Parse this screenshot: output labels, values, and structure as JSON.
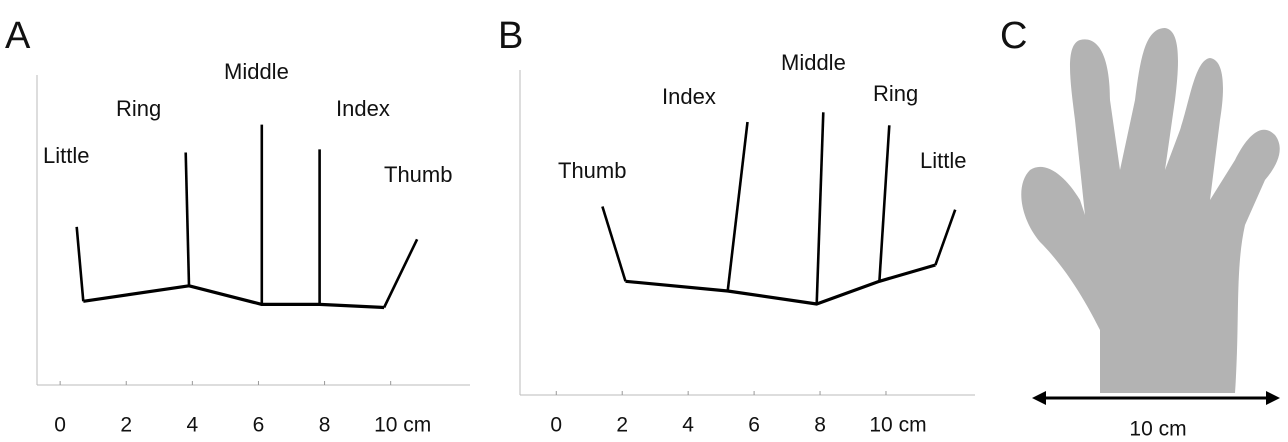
{
  "chart_data": [
    {
      "type": "line",
      "label": "A",
      "xlim": [
        -0.7,
        12.4
      ],
      "ylim": [
        0,
        10
      ],
      "xticks": [
        0,
        2,
        4,
        6,
        8,
        {
          "value": 10,
          "label": "10 cm"
        }
      ],
      "annotations": [
        "Little",
        "Ring",
        "Middle",
        "Index",
        "Thumb"
      ],
      "series": [
        {
          "color": "#000000",
          "x": [
            0.7,
            3.9,
            6.1,
            7.85,
            9.8
          ],
          "y": [
            2.7,
            3.2,
            2.6,
            2.6,
            2.5
          ]
        },
        {
          "color": "#000000",
          "x": [
            0.7,
            0.5
          ],
          "y": [
            2.7,
            5.1
          ]
        },
        {
          "color": "#000000",
          "x": [
            3.9,
            3.8
          ],
          "y": [
            3.2,
            7.5
          ]
        },
        {
          "color": "#000000",
          "x": [
            6.1,
            6.1
          ],
          "y": [
            2.6,
            8.4
          ]
        },
        {
          "color": "#000000",
          "x": [
            7.85,
            7.85
          ],
          "y": [
            2.6,
            7.6
          ]
        },
        {
          "color": "#000000",
          "x": [
            9.8,
            10.8
          ],
          "y": [
            2.5,
            4.7
          ]
        }
      ]
    },
    {
      "type": "line",
      "label": "B",
      "xlim": [
        -1.1,
        12.7
      ],
      "ylim": [
        0,
        10
      ],
      "xticks": [
        0,
        2,
        4,
        6,
        8,
        {
          "value": 10,
          "label": "10 cm"
        }
      ],
      "annotations": [
        "Thumb",
        "Index",
        "Middle",
        "Ring",
        "Little"
      ],
      "series": [
        {
          "color": "#000000",
          "x": [
            2.1,
            5.2,
            7.9,
            9.8,
            11.5
          ],
          "y": [
            3.5,
            3.2,
            2.8,
            3.5,
            4.0
          ]
        },
        {
          "color": "#000000",
          "x": [
            2.1,
            1.4
          ],
          "y": [
            3.5,
            5.8
          ]
        },
        {
          "color": "#000000",
          "x": [
            5.2,
            5.8
          ],
          "y": [
            3.2,
            8.4
          ]
        },
        {
          "color": "#000000",
          "x": [
            7.9,
            8.1
          ],
          "y": [
            2.8,
            8.7
          ]
        },
        {
          "color": "#000000",
          "x": [
            9.8,
            10.1
          ],
          "y": [
            3.5,
            8.3
          ]
        },
        {
          "color": "#000000",
          "x": [
            11.5,
            12.1
          ],
          "y": [
            4.0,
            5.7
          ]
        }
      ]
    }
  ],
  "panel_c": {
    "label": "C",
    "scale_label": "10 cm"
  }
}
